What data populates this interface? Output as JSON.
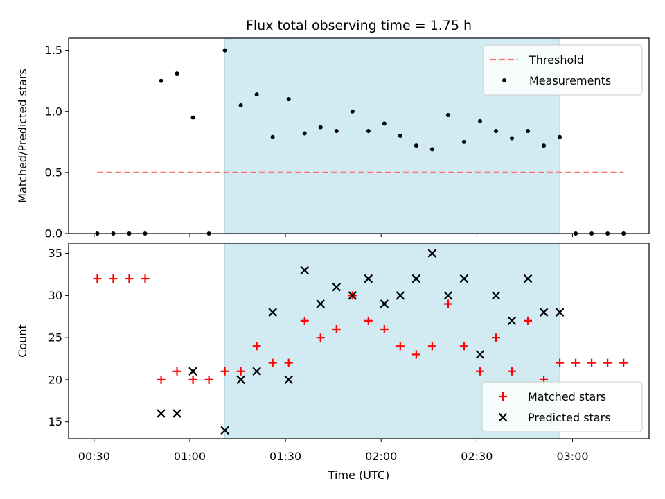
{
  "chart_data": {
    "title": "Flux total observing time = 1.75 h",
    "xlabel": "Time (UTC)",
    "x_ticks": [
      "00:30",
      "01:00",
      "01:30",
      "02:00",
      "02:30",
      "03:00"
    ],
    "x_tick_minutes": [
      30,
      60,
      90,
      120,
      150,
      180
    ],
    "xlim_minutes": [
      22,
      204
    ],
    "shaded_interval_minutes": [
      71,
      176
    ],
    "shade_color": "#add8e6",
    "panels": [
      {
        "type": "scatter",
        "ylabel": "Matched/Predicted stars",
        "ylim": [
          0,
          1.6
        ],
        "y_ticks": [
          "0.0",
          "0.5",
          "1.0",
          "1.5"
        ],
        "y_tick_values": [
          0,
          0.5,
          1.0,
          1.5
        ],
        "legend_position": "upper right",
        "threshold": {
          "name": "Threshold",
          "value": 0.5,
          "x_range_minutes": [
            31,
            196
          ],
          "color": "#ff7070"
        },
        "series": [
          {
            "name": "Measurements",
            "color": "#000000",
            "x_minutes": [
              31,
              36,
              41,
              46,
              51,
              56,
              61,
              66,
              71,
              76,
              81,
              86,
              91,
              96,
              101,
              106,
              111,
              116,
              121,
              126,
              131,
              136,
              141,
              146,
              151,
              156,
              161,
              166,
              171,
              176,
              181,
              186,
              191,
              196
            ],
            "y": [
              0,
              0,
              0,
              0,
              1.25,
              1.31,
              0.95,
              0,
              1.5,
              1.05,
              1.14,
              0.79,
              1.1,
              0.82,
              0.87,
              0.84,
              1.0,
              0.84,
              0.9,
              0.8,
              0.72,
              0.69,
              0.97,
              0.75,
              0.92,
              0.84,
              0.78,
              0.84,
              0.72,
              0.79,
              0,
              0,
              0,
              0
            ]
          }
        ]
      },
      {
        "type": "scatter",
        "ylabel": "Count",
        "ylim": [
          13,
          36.2
        ],
        "y_ticks": [
          "15",
          "20",
          "25",
          "30",
          "35"
        ],
        "y_tick_values": [
          15,
          20,
          25,
          30,
          35
        ],
        "legend_position": "lower right",
        "series": [
          {
            "name": "Matched stars",
            "marker": "plus",
            "color": "#ff0000",
            "x_minutes": [
              31,
              36,
              41,
              46,
              51,
              56,
              61,
              66,
              71,
              76,
              81,
              86,
              91,
              96,
              101,
              106,
              111,
              116,
              121,
              126,
              131,
              136,
              141,
              146,
              151,
              156,
              161,
              166,
              171,
              176,
              181,
              186,
              191,
              196
            ],
            "y": [
              32,
              32,
              32,
              32,
              20,
              21,
              20,
              20,
              21,
              21,
              24,
              22,
              22,
              27,
              25,
              26,
              30,
              27,
              26,
              24,
              23,
              24,
              29,
              24,
              21,
              25,
              21,
              27,
              20,
              22,
              22,
              22,
              22,
              22
            ]
          },
          {
            "name": "Predicted stars",
            "marker": "x",
            "color": "#000000",
            "x_minutes": [
              51,
              56,
              61,
              71,
              76,
              81,
              86,
              91,
              96,
              101,
              106,
              111,
              116,
              121,
              126,
              131,
              136,
              141,
              146,
              151,
              156,
              161,
              166,
              171,
              176
            ],
            "y": [
              16,
              16,
              21,
              14,
              20,
              21,
              28,
              20,
              33,
              29,
              31,
              30,
              32,
              29,
              30,
              32,
              35,
              30,
              32,
              23,
              30,
              27,
              32,
              28,
              28
            ]
          }
        ]
      }
    ]
  }
}
